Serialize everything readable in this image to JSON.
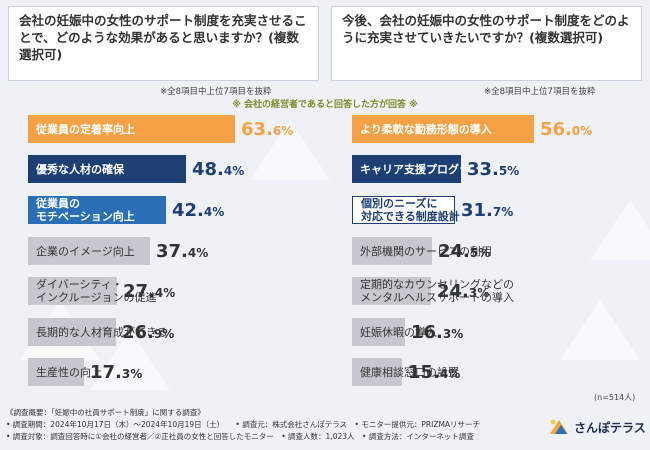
{
  "left_panel": {
    "question": "会社の妊娠中の女性のサポート制度を充実させることで、どのような効果があると思いますか？(複数選択可)",
    "note": "※全8項目中上位7項目を抜粋"
  },
  "right_panel": {
    "question": "今後、会社の妊娠中の女性のサポート制度をどのように充実させていきたいですか？(複数選択可)",
    "note": "※全8項目中上位7項目を抜粋"
  },
  "center_note": "※ 会社の経営者であると回答した方が回答 ※",
  "sample_size": "(n=514人)",
  "colors": {
    "orange": "#f5a145",
    "navy": "#1e3f73",
    "blue": "#2a6eb5",
    "gray": "#c5c9cf",
    "text": "#333333"
  },
  "chart_data": [
    {
      "type": "bar",
      "title": "会社の妊娠中の女性のサポート制度を充実させることで、どのような効果があると思いますか？(複数選択可)",
      "unit": "%",
      "categories": [
        "従業員の定着率向上",
        "優秀な人材の確保",
        "従業員のモチベーション向上",
        "企業のイメージ向上",
        "ダイバーシティ・インクルージョンの促進",
        "長期的な人材育成ができる",
        "生産性の向上"
      ],
      "display_labels": [
        "従業員の定着率向上",
        "優秀な人材の確保",
        "従業員の\nモチベーション向上",
        "企業のイメージ向上",
        "ダイバーシティ・\nインクルージョンの促進",
        "長期的な人材育成ができる",
        "生産性の向上"
      ],
      "values": [
        63.6,
        48.4,
        42.4,
        37.4,
        27.4,
        26.9,
        17.3
      ],
      "value_labels": [
        [
          "63.",
          "6%"
        ],
        [
          "48.",
          "4%"
        ],
        [
          "42.",
          "4%"
        ],
        [
          "37.",
          "4%"
        ],
        [
          "27.",
          "4%"
        ],
        [
          "26.",
          "9%"
        ],
        [
          "17.",
          "3%"
        ]
      ]
    },
    {
      "type": "bar",
      "title": "今後、会社の妊娠中の女性のサポート制度をどのように充実させていきたいですか？(複数選択可)",
      "unit": "%",
      "categories": [
        "より柔軟な勤務形態の導入",
        "キャリア支援プログラムの強化",
        "個別のニーズに対応できる制度設計",
        "外部機関のサービスの利用",
        "定期的なカウンセリングなどのメンタルヘルスサポートの導入",
        "妊娠休暇の導入",
        "健康相談窓口の設置"
      ],
      "display_labels": [
        "より柔軟な勤務形態の導入",
        "キャリア支援プログラムの強化",
        "個別のニーズに\n対応できる制度設計",
        "外部機関のサービスの利用",
        "定期的なカウンセリングなどの\nメンタルヘルスサポートの導入",
        "妊娠休暇の導入",
        "健康相談窓口の設置"
      ],
      "values": [
        56.0,
        33.5,
        31.7,
        24.5,
        24.3,
        16.3,
        15.4
      ],
      "value_labels": [
        [
          "56.",
          "0%"
        ],
        [
          "33.",
          "5%"
        ],
        [
          "31.",
          "7%"
        ],
        [
          "24.",
          "5%"
        ],
        [
          "24.",
          "3%"
        ],
        [
          "16.",
          "3%"
        ],
        [
          "15.",
          "4%"
        ]
      ]
    }
  ],
  "footer": {
    "line1": "《調査概要：「妊娠中の社員サポート制度」に関する調査》",
    "line2": "• 調査期間：2024年10月17日（木）～2024年10月19日（土）　　• 調査元：株式会社さんぽテラス　• モニター提供元：PRIZMAリサーチ",
    "line3": "• 調査対象：調査回答時に①会社の経営者／②正社員の女性と回答したモニター　• 調査人数：1,023人　• 調査方法：インターネット調査"
  },
  "logo": {
    "icon": "sanpo-terrace-logo-icon",
    "text": "さんぽテラス"
  }
}
